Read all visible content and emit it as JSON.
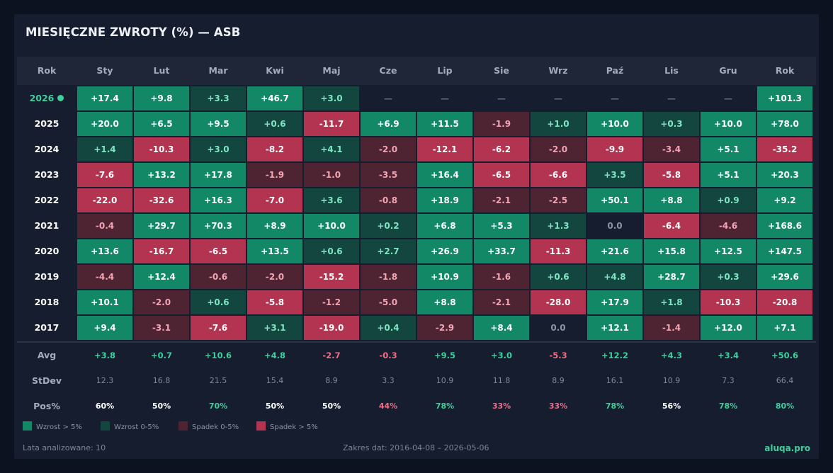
{
  "title": "MIESIĘCZNE ZWROTY (%) — ASB",
  "columns": [
    "Rok",
    "Sty",
    "Lut",
    "Mar",
    "Kwi",
    "Maj",
    "Cze",
    "Lip",
    "Sie",
    "Wrz",
    "Paź",
    "Lis",
    "Gru",
    "Rok"
  ],
  "colors": {
    "strong_up": "#128866",
    "weak_up": "#13463f",
    "weak_down": "#4e2433",
    "strong_down": "#b23450",
    "positive_text": "#3ecf9c",
    "negative_text": "#ef6f86",
    "neutral_text": "#8a93a6"
  },
  "chart_data": {
    "type": "heatmap",
    "title": "MIESIĘCZNE ZWROTY (%) — ASB",
    "x_categories": [
      "Sty",
      "Lut",
      "Mar",
      "Kwi",
      "Maj",
      "Cze",
      "Lip",
      "Sie",
      "Wrz",
      "Paź",
      "Lis",
      "Gru",
      "Rok"
    ],
    "rows": [
      {
        "year": "2026",
        "current": true,
        "values": [
          "+17.4",
          "+9.8",
          "+3.3",
          "+46.7",
          "+3.0",
          "—",
          "—",
          "—",
          "—",
          "—",
          "—",
          "—",
          "+101.3"
        ]
      },
      {
        "year": "2025",
        "values": [
          "+20.0",
          "+6.5",
          "+9.5",
          "+0.6",
          "-11.7",
          "+6.9",
          "+11.5",
          "-1.9",
          "+1.0",
          "+10.0",
          "+0.3",
          "+10.0",
          "+78.0"
        ]
      },
      {
        "year": "2024",
        "values": [
          "+1.4",
          "-10.3",
          "+3.0",
          "-8.2",
          "+4.1",
          "-2.0",
          "-12.1",
          "-6.2",
          "-2.0",
          "-9.9",
          "-3.4",
          "+5.1",
          "-35.2"
        ]
      },
      {
        "year": "2023",
        "values": [
          "-7.6",
          "+13.2",
          "+17.8",
          "-1.9",
          "-1.0",
          "-3.5",
          "+16.4",
          "-6.5",
          "-6.6",
          "+3.5",
          "-5.8",
          "+5.1",
          "+20.3"
        ]
      },
      {
        "year": "2022",
        "values": [
          "-22.0",
          "-32.6",
          "+16.3",
          "-7.0",
          "+3.6",
          "-0.8",
          "+18.9",
          "-2.1",
          "-2.5",
          "+50.1",
          "+8.8",
          "+0.9",
          "+9.2"
        ]
      },
      {
        "year": "2021",
        "values": [
          "-0.4",
          "+29.7",
          "+70.3",
          "+8.9",
          "+10.0",
          "+0.2",
          "+6.8",
          "+5.3",
          "+1.3",
          "0.0",
          "-6.4",
          "-4.6",
          "+168.6"
        ]
      },
      {
        "year": "2020",
        "values": [
          "+13.6",
          "-16.7",
          "-6.5",
          "+13.5",
          "+0.6",
          "+2.7",
          "+26.9",
          "+33.7",
          "-11.3",
          "+21.6",
          "+15.8",
          "+12.5",
          "+147.5"
        ]
      },
      {
        "year": "2019",
        "values": [
          "-4.4",
          "+12.4",
          "-0.6",
          "-2.0",
          "-15.2",
          "-1.8",
          "+10.9",
          "-1.6",
          "+0.6",
          "+4.8",
          "+28.7",
          "+0.3",
          "+29.6"
        ]
      },
      {
        "year": "2018",
        "values": [
          "+10.1",
          "-2.0",
          "+0.6",
          "-5.8",
          "-1.2",
          "-5.0",
          "+8.8",
          "-2.1",
          "-28.0",
          "+17.9",
          "+1.8",
          "-10.3",
          "-20.8"
        ]
      },
      {
        "year": "2017",
        "values": [
          "+9.4",
          "-3.1",
          "-7.6",
          "+3.1",
          "-19.0",
          "+0.4",
          "-2.9",
          "+8.4",
          "0.0",
          "+12.1",
          "-1.4",
          "+12.0",
          "+7.1"
        ]
      }
    ],
    "stats": {
      "avg": {
        "label": "Avg",
        "values": [
          "+3.8",
          "+0.7",
          "+10.6",
          "+4.8",
          "-2.7",
          "-0.3",
          "+9.5",
          "+3.0",
          "-5.3",
          "+12.2",
          "+4.3",
          "+3.4",
          "+50.6"
        ]
      },
      "stdev": {
        "label": "StDev",
        "values": [
          "12.3",
          "16.8",
          "21.5",
          "15.4",
          "8.9",
          "3.3",
          "10.9",
          "11.8",
          "8.9",
          "16.1",
          "10.9",
          "7.3",
          "66.4"
        ]
      },
      "pos": {
        "label": "Pos%",
        "values": [
          "60%",
          "50%",
          "70%",
          "50%",
          "50%",
          "44%",
          "78%",
          "33%",
          "33%",
          "78%",
          "56%",
          "78%",
          "80%"
        ]
      }
    }
  },
  "legend": [
    {
      "label": "Wzrost > 5%",
      "color": "#128866"
    },
    {
      "label": "Wzrost 0-5%",
      "color": "#13463f"
    },
    {
      "label": "Spadek 0-5%",
      "color": "#4e2433"
    },
    {
      "label": "Spadek > 5%",
      "color": "#b23450"
    }
  ],
  "footer": {
    "years": "Lata analizowane: 10",
    "range": "Zakres dat: 2016-04-08 – 2026-05-06",
    "brand": "aluqa.pro"
  }
}
